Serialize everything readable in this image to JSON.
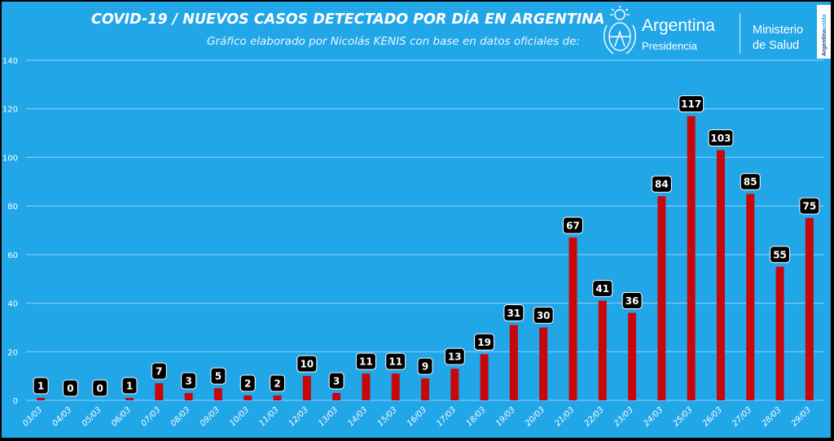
{
  "header": {
    "title": "COVID-19  /  NUEVOS CASOS DETECTADO POR DÍA EN ARGENTINA",
    "subtitle": "Gráfico elaborado por Nicolás KENIS con base en datos oficiales de:",
    "logo_name": "Argentina",
    "logo_sub": "Presidencia",
    "ministry_line1": "Ministerio",
    "ministry_line2": "de Salud",
    "badge_text_1": "Argentina",
    "badge_text_2": "unida"
  },
  "colors": {
    "background": "#21a6e8",
    "bar": "#c8070b",
    "grid": "#8fd6fb",
    "label_bg": "#000000",
    "label_text": "#ffffff"
  },
  "chart_data": {
    "type": "bar",
    "title": "COVID-19  /  NUEVOS CASOS DETECTADO POR DÍA EN ARGENTINA",
    "subtitle": "Gráfico elaborado por Nicolás KENIS con base en datos oficiales de:",
    "xlabel": "",
    "ylabel": "",
    "categories": [
      "03/03",
      "04/03",
      "05/03",
      "06/03",
      "07/03",
      "08/03",
      "09/03",
      "10/03",
      "11/03",
      "12/03",
      "13/03",
      "14/03",
      "15/03",
      "16/03",
      "17/03",
      "18/03",
      "19/03",
      "20/03",
      "21/03",
      "22/03",
      "23/03",
      "24/03",
      "25/03",
      "26/03",
      "27/03",
      "28/03",
      "29/03"
    ],
    "values": [
      1,
      0,
      0,
      1,
      7,
      3,
      5,
      2,
      2,
      10,
      3,
      11,
      11,
      9,
      13,
      19,
      31,
      30,
      67,
      41,
      36,
      84,
      117,
      103,
      85,
      55,
      75
    ],
    "ylim": [
      0,
      140
    ],
    "yticks": [
      0,
      20,
      40,
      60,
      80,
      100,
      120,
      140
    ],
    "grid": true,
    "legend": "none",
    "data_labels": true
  }
}
